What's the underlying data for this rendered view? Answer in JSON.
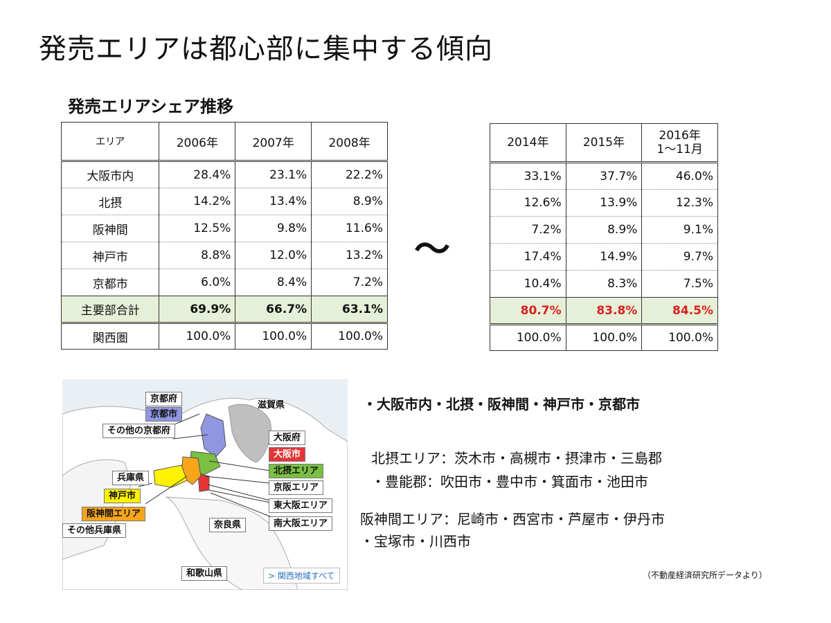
{
  "title": "発売エリアは都心部に集中する傾向",
  "subtitle": "発売エリアシェア推移",
  "tilde": "～",
  "left_table": {
    "headers": [
      "エリア",
      "2006年",
      "2007年",
      "2008年"
    ],
    "rows": [
      [
        "大阪市内",
        "28.4%",
        "23.1%",
        "22.2%"
      ],
      [
        "北摂",
        "14.2%",
        "13.4%",
        "8.9%"
      ],
      [
        "阪神間",
        "12.5%",
        "9.8%",
        "11.6%"
      ],
      [
        "神戸市",
        "8.8%",
        "12.0%",
        "13.2%"
      ],
      [
        "京都市",
        "6.0%",
        "8.4%",
        "7.2%"
      ]
    ],
    "subtotal": [
      "主要部合計",
      "69.9%",
      "66.7%",
      "63.1%"
    ],
    "total": [
      "関西圏",
      "100.0%",
      "100.0%",
      "100.0%"
    ]
  },
  "right_table": {
    "headers": [
      "2014年",
      "2015年",
      "2016年\n1～11月"
    ],
    "rows": [
      [
        "33.1%",
        "37.7%",
        "46.0%"
      ],
      [
        "12.6%",
        "13.9%",
        "12.3%"
      ],
      [
        "7.2%",
        "8.9%",
        "9.1%"
      ],
      [
        "17.4%",
        "14.9%",
        "9.7%"
      ],
      [
        "10.4%",
        "8.3%",
        "7.5%"
      ]
    ],
    "subtotal": [
      "80.7%",
      "83.8%",
      "84.5%"
    ],
    "total": [
      "100.0%",
      "100.0%",
      "100.0%"
    ]
  },
  "map": {
    "labels": {
      "kyoto_pref": "京都府",
      "kyoto_city": "京都市",
      "kyoto_other": "その他の京都府",
      "shiga": "滋賀県",
      "osaka_pref": "大阪府",
      "osaka_city": "大阪市",
      "hokusetsu": "北摂エリア",
      "keihan": "京阪エリア",
      "higashi_osaka": "東大阪エリア",
      "minami_osaka": "南大阪エリア",
      "hyogo": "兵庫県",
      "kobe": "神戸市",
      "hanshin": "阪神間エリア",
      "hyogo_other": "その他兵庫県",
      "nara": "奈良県",
      "wakayama": "和歌山県"
    },
    "link": "> 関西地域すべて",
    "colors": {
      "kyoto": "#8f97e0",
      "osaka": "#e53535",
      "hokusetsu": "#7ac043",
      "kobe": "#fff200",
      "hanshin": "#f8a51c"
    }
  },
  "notes": {
    "main": "・大阪市内・北摂・阪神間・神戸市・京都市",
    "hokusetsu_1": "北摂エリア：茨木市・高槻市・摂津市・三島郡",
    "hokusetsu_2": "・豊能郡：吹田市・豊中市・箕面市・池田市",
    "hanshin_1": "阪神間エリア：尼崎市・西宮市・芦屋市・伊丹市",
    "hanshin_2": "・宝塚市・川西市"
  },
  "source": "（不動産経済研究所データより）"
}
